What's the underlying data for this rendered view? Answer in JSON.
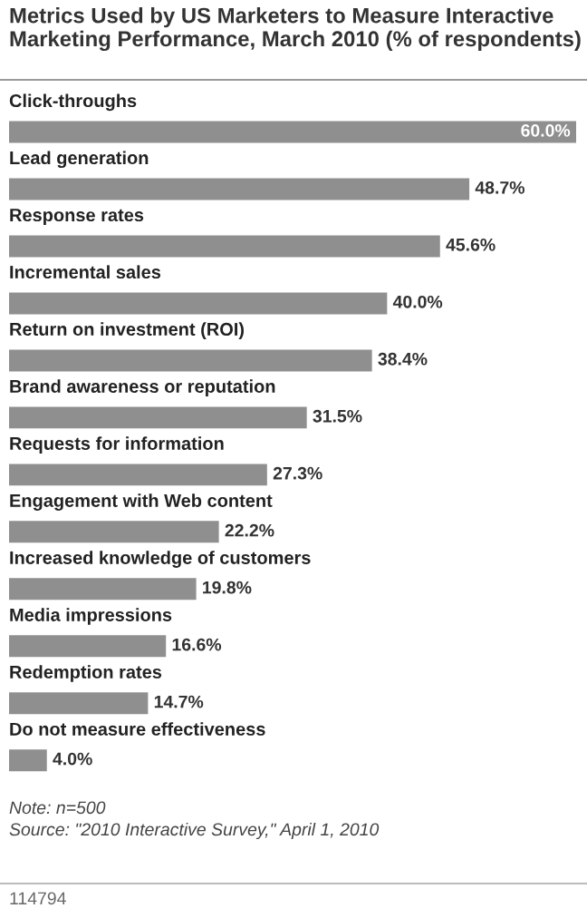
{
  "chart_data": {
    "type": "bar",
    "orientation": "horizontal",
    "title": "Metrics Used by US Marketers to Measure Interactive Marketing Performance, March 2010 (% of respondents)",
    "categories": [
      "Click-throughs",
      "Lead generation",
      "Response rates",
      "Incremental sales",
      "Return on investment (ROI)",
      "Brand awareness or reputation",
      "Requests for information",
      "Engagement with Web content",
      "Increased knowledge of customers",
      "Media impressions",
      "Redemption rates",
      "Do not measure effectiveness"
    ],
    "values": [
      60.0,
      48.7,
      45.6,
      40.0,
      38.4,
      31.5,
      27.3,
      22.2,
      19.8,
      16.6,
      14.7,
      4.0
    ],
    "value_labels": [
      "60.0%",
      "48.7%",
      "45.6%",
      "40.0%",
      "38.4%",
      "31.5%",
      "27.3%",
      "22.2%",
      "19.8%",
      "16.6%",
      "14.7%",
      "4.0%"
    ],
    "color": "#8f8f8f",
    "annotations": [
      "Note: n=500",
      "Source: \"2010 Interactive Survey,\" April 1, 2010",
      "114794"
    ]
  }
}
